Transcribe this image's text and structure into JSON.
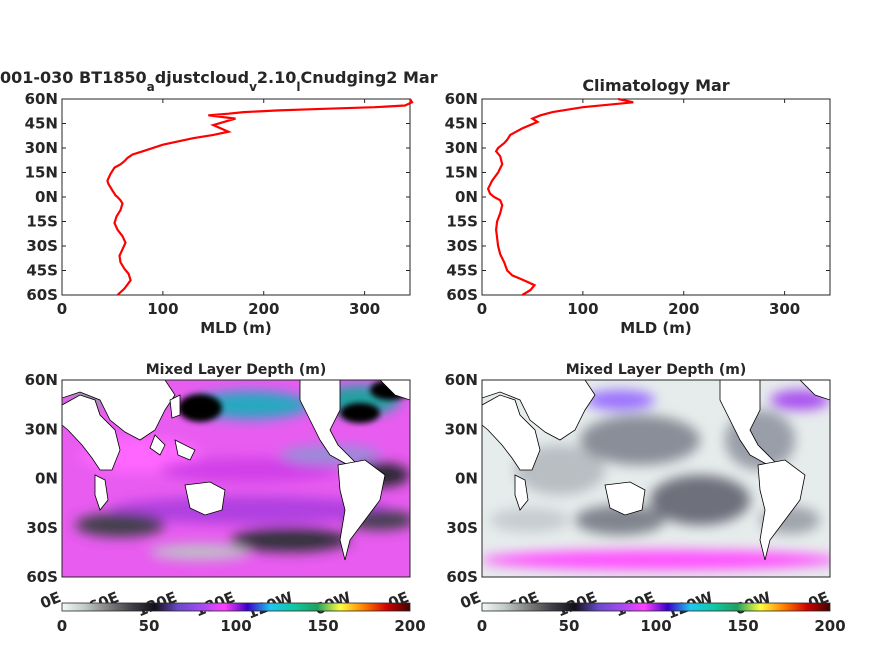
{
  "chart_data": [
    {
      "type": "line",
      "title": "001-030 BT1850_adjustcloud_v2.10_lCnudging2 Mar",
      "title_parts": {
        "a": "001-030 BT1850",
        "b": "a",
        "c": "djustcloud",
        "d": "v",
        "e": "2.10",
        "f": "l",
        "g": "Cnudging2 Mar"
      },
      "xlabel": "MLD (m)",
      "xlim": [
        0,
        345
      ],
      "ylim": [
        -60,
        60
      ],
      "xticks": [
        "0",
        "100",
        "200",
        "300"
      ],
      "yticks": [
        "60N",
        "45N",
        "30N",
        "15N",
        "0N",
        "15S",
        "30S",
        "45S",
        "60S"
      ],
      "line_color": "#ff0000",
      "series": [
        {
          "x": [
            55,
            62,
            68,
            66,
            62,
            58,
            57,
            60,
            63,
            60,
            55,
            52,
            54,
            58,
            60,
            58,
            55,
            53,
            52,
            50,
            48,
            46,
            45,
            48,
            52,
            58,
            62,
            65,
            70,
            80,
            100,
            130,
            150,
            165,
            150,
            172,
            145,
            165,
            180,
            215,
            260,
            310,
            340,
            380,
            345
          ],
          "y": [
            -60,
            -56,
            -51,
            -47,
            -44,
            -40,
            -36,
            -32,
            -28,
            -24,
            -20,
            -16,
            -12,
            -8,
            -4,
            -2,
            0,
            1,
            2,
            4,
            6,
            8,
            10,
            14,
            18,
            20,
            22,
            24,
            26,
            28,
            32,
            36,
            38,
            40,
            44,
            48,
            50,
            51,
            52,
            53,
            54,
            55,
            56,
            58,
            60
          ]
        }
      ]
    },
    {
      "type": "line",
      "title": "Climatology Mar",
      "xlabel": "MLD (m)",
      "xlim": [
        0,
        345
      ],
      "ylim": [
        -60,
        60
      ],
      "xticks": [
        "0",
        "100",
        "200",
        "300"
      ],
      "yticks": [
        "60N",
        "45N",
        "30N",
        "15N",
        "0N",
        "15S",
        "30S",
        "45S",
        "60S"
      ],
      "line_color": "#ff0000",
      "series": [
        {
          "x": [
            40,
            48,
            52,
            45,
            38,
            30,
            25,
            22,
            18,
            16,
            15,
            14,
            15,
            18,
            20,
            18,
            12,
            8,
            6,
            10,
            16,
            20,
            18,
            14,
            16,
            22,
            25,
            28,
            40,
            55,
            50,
            58,
            70,
            100,
            150,
            135
          ],
          "y": [
            -60,
            -57,
            -54,
            -52,
            -50,
            -48,
            -45,
            -40,
            -35,
            -30,
            -25,
            -20,
            -15,
            -10,
            -5,
            -2,
            0,
            2,
            5,
            10,
            15,
            20,
            25,
            28,
            30,
            33,
            35,
            38,
            42,
            46,
            48,
            50,
            52,
            55,
            58,
            60
          ]
        }
      ]
    },
    {
      "type": "heatmap",
      "title": "Mixed Layer Depth (m)",
      "xticks": [
        "0E",
        "60E",
        "120E",
        "180E",
        "120W",
        "60W",
        "0E"
      ],
      "yticks": [
        "60N",
        "30N",
        "0N",
        "30S",
        "60S"
      ],
      "colorbar_ticks": [
        "0",
        "50",
        "100",
        "150",
        "200"
      ],
      "colorbar_range": [
        0,
        200
      ],
      "colorbar_colors": [
        "#f4f8f8",
        "#c0c8c8",
        "#808080",
        "#404048",
        "#101018",
        "#6a4ac8",
        "#a14cf0",
        "#ff40ff",
        "#3a00c8",
        "#1ec8f0",
        "#10c8a0",
        "#20a060",
        "#ffff40",
        "#ff8000",
        "#d00000",
        "#400000"
      ]
    },
    {
      "type": "heatmap",
      "title": "Mixed Layer Depth (m)",
      "xticks": [
        "0E",
        "60E",
        "120E",
        "180E",
        "120W",
        "60W",
        "0E"
      ],
      "yticks": [
        "60N",
        "30N",
        "0N",
        "30S",
        "60S"
      ],
      "colorbar_ticks": [
        "0",
        "50",
        "100",
        "150",
        "200"
      ],
      "colorbar_range": [
        0,
        200
      ],
      "colorbar_colors": [
        "#f4f8f8",
        "#c0c8c8",
        "#808080",
        "#404048",
        "#101018",
        "#6a4ac8",
        "#a14cf0",
        "#ff40ff",
        "#3a00c8",
        "#1ec8f0",
        "#10c8a0",
        "#20a060",
        "#ffff40",
        "#ff8000",
        "#d00000",
        "#400000"
      ]
    }
  ]
}
